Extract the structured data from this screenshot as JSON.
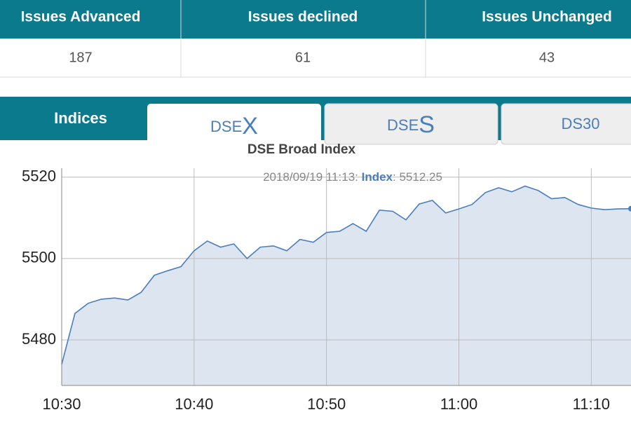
{
  "table": {
    "headers": [
      "Issues Advanced",
      "Issues declined",
      "Issues Unchanged"
    ],
    "rows": [
      [
        187,
        61,
        43
      ]
    ]
  },
  "tabs": {
    "label": "Indices",
    "items": [
      [
        "DSE",
        "X"
      ],
      [
        "DSE",
        "S"
      ],
      [
        "DS30"
      ]
    ]
  },
  "tooltip": {
    "time": "2018/09/19 11:13:",
    "series": "Index",
    "text": ": 5512.25"
  },
  "chart_data": {
    "type": "area",
    "title": "DSE Broad Index",
    "x": [
      "10:30",
      "10:31",
      "10:32",
      "10:33",
      "10:34",
      "10:35",
      "10:36",
      "10:37",
      "10:38",
      "10:39",
      "10:40",
      "10:41",
      "10:42",
      "10:43",
      "10:44",
      "10:45",
      "10:46",
      "10:47",
      "10:48",
      "10:49",
      "10:50",
      "10:51",
      "10:52",
      "10:53",
      "10:54",
      "10:55",
      "10:56",
      "10:57",
      "10:58",
      "10:59",
      "11:00",
      "11:01",
      "11:02",
      "11:03",
      "11:04",
      "11:05",
      "11:06",
      "11:07",
      "11:08",
      "11:09",
      "11:10",
      "11:11",
      "11:12",
      "11:13"
    ],
    "series": [
      {
        "name": "Index",
        "color": "#4a7ebb",
        "fill": "#dde5f0",
        "values": [
          5474,
          5486.5,
          5489,
          5490,
          5490.3,
          5489.8,
          5491.7,
          5495.9,
          5497,
          5498,
          5501.9,
          5504.3,
          5502.8,
          5503.6,
          5500,
          5502.8,
          5503.1,
          5501.9,
          5504.7,
          5504,
          5506.4,
          5506.7,
          5508.6,
          5506.7,
          5511.9,
          5511.6,
          5509.5,
          5513.4,
          5514.3,
          5511.2,
          5512.2,
          5513.3,
          5516.2,
          5517.4,
          5516.4,
          5517.8,
          5516.7,
          5514.7,
          5515,
          5513.3,
          5512.4,
          5512,
          5512.2,
          5512.25
        ]
      }
    ],
    "xlim": [
      "10:30",
      "11:13"
    ],
    "xticks": [
      "10:30",
      "10:40",
      "10:50",
      "11:00",
      "11:10"
    ],
    "ylim": [
      5468.8,
      5522.2
    ],
    "yticks": [
      5480,
      5500,
      5520
    ],
    "grid": true
  }
}
